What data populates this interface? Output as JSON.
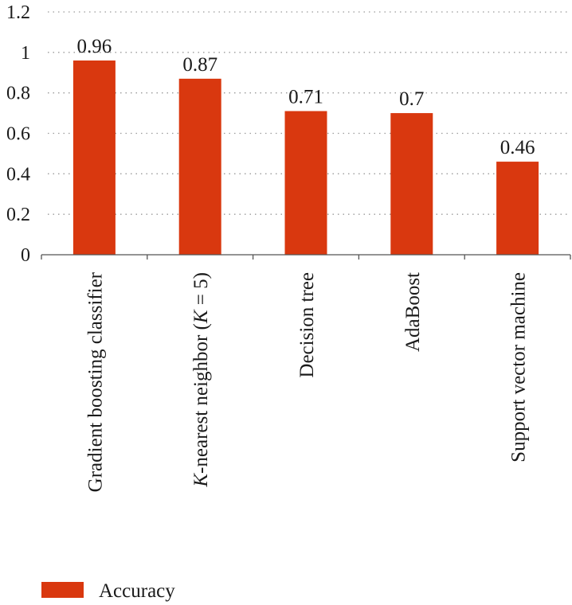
{
  "chart_data": {
    "type": "bar",
    "title": "",
    "xlabel": "",
    "ylabel": "",
    "categories": [
      {
        "pre": "Gradient boosting classifier",
        "ital": "",
        "mid": "",
        "ital2": "",
        "post": ""
      },
      {
        "pre": "",
        "ital": "K",
        "mid": "-nearest neighbor (",
        "ital2": "K",
        "post": " = 5)"
      },
      {
        "pre": "Decision tree",
        "ital": "",
        "mid": "",
        "ital2": "",
        "post": ""
      },
      {
        "pre": "AdaBoost",
        "ital": "",
        "mid": "",
        "ital2": "",
        "post": ""
      },
      {
        "pre": "Support vector machine",
        "ital": "",
        "mid": "",
        "ital2": "",
        "post": ""
      }
    ],
    "series": [
      {
        "name": "Accuracy",
        "color": "#d9380f",
        "values": [
          0.96,
          0.87,
          0.71,
          0.7,
          0.46
        ]
      }
    ],
    "value_labels": [
      "0.96",
      "0.87",
      "0.71",
      "0.7",
      "0.46"
    ],
    "ylim": [
      0,
      1.2
    ],
    "yticks": [
      {
        "value": 0,
        "label": "0"
      },
      {
        "value": 0.2,
        "label": "0.2"
      },
      {
        "value": 0.4,
        "label": "0.4"
      },
      {
        "value": 0.6,
        "label": "0.6"
      },
      {
        "value": 0.8,
        "label": "0.8"
      },
      {
        "value": 1,
        "label": "1"
      },
      {
        "value": 1.2,
        "label": "1.2"
      }
    ],
    "grid": true,
    "legend": {
      "position": "bottom-left",
      "label": "Accuracy"
    }
  }
}
